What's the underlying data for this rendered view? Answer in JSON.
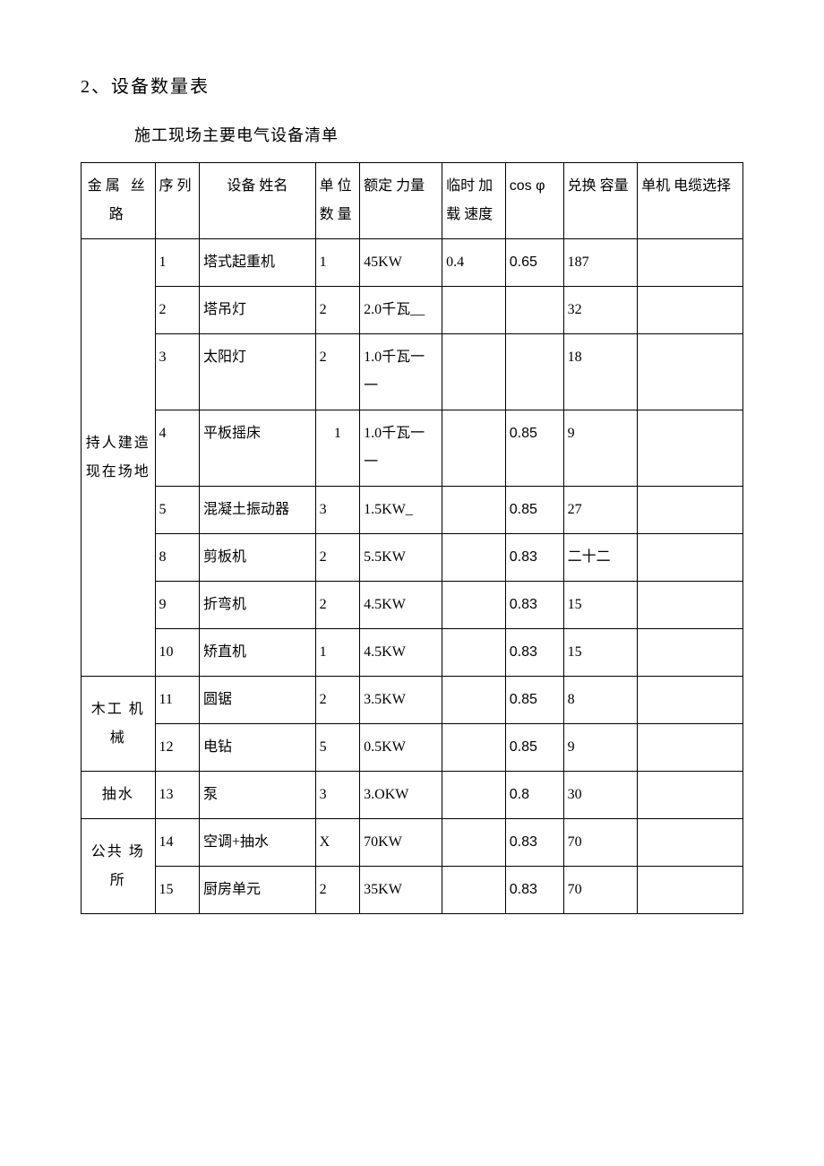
{
  "section_title": "2、设备数量表",
  "table_caption": "施工现场主要电气设备清单",
  "headers": {
    "group": "金属\n丝\n路",
    "seq": "序\n列",
    "name": "设备\n姓名",
    "qty": "单\n位\n数\n量",
    "rated": "额定\n力量",
    "temp": "临时\n加载\n速度",
    "cos": "cos\nφ",
    "cap": "兑换\n容量",
    "cable": "单机\n电缆选择"
  },
  "groups": [
    {
      "label": "持人建造现在场地",
      "rowspan": 8,
      "rows": [
        {
          "seq": "1",
          "name": "塔式起重机",
          "qty": "1",
          "rated": "45KW",
          "temp": "0.4",
          "cos": "0.65",
          "cap": "187",
          "cable": ""
        },
        {
          "seq": "2",
          "name": "塔吊灯",
          "qty": "2",
          "rated": "2.0千瓦__",
          "temp": "",
          "cos": "",
          "cap": "32",
          "cable": ""
        },
        {
          "seq": "3",
          "name": "太阳灯",
          "qty": "2",
          "rated": "1.0千瓦一一",
          "temp": "",
          "cos": "",
          "cap": "18",
          "cable": ""
        },
        {
          "seq": "4",
          "name": "平板摇床",
          "qty": "1",
          "qty_center": true,
          "rated": "1.0千瓦一一",
          "temp": "",
          "cos": "0.85",
          "cap": "9",
          "cable": ""
        },
        {
          "seq": "5",
          "name": "混凝土振动器",
          "qty": "3",
          "rated": "1.5KW_",
          "temp": "",
          "cos": "0.85",
          "cap": "27",
          "cable": ""
        },
        {
          "seq": "8",
          "name": "剪板机",
          "qty": "2",
          "rated": "5.5KW",
          "temp": "",
          "cos": "0.83",
          "cap": "二十二",
          "cable": ""
        },
        {
          "seq": "9",
          "name": "折弯机",
          "qty": "2",
          "rated": "4.5KW",
          "temp": "",
          "cos": "0.83",
          "cap": "15",
          "cable": ""
        },
        {
          "seq": "10",
          "name": "矫直机",
          "qty": "1",
          "rated": "4.5KW",
          "temp": "",
          "cos": "0.83",
          "cap": "15",
          "cable": ""
        }
      ]
    },
    {
      "label": "木工\n机械",
      "rowspan": 2,
      "rows": [
        {
          "seq": "11",
          "name": "圆锯",
          "qty": "2",
          "rated": "3.5KW",
          "temp": "",
          "cos": "0.85",
          "cap": "8",
          "cable": ""
        },
        {
          "seq": "12",
          "name": "电钻",
          "qty": "5",
          "rated": "0.5KW",
          "temp": "",
          "cos": "0.85",
          "cap": "9",
          "cable": ""
        }
      ]
    },
    {
      "label": "抽水",
      "rowspan": 1,
      "rows": [
        {
          "seq": "13",
          "name": "泵",
          "qty": "3",
          "rated": "3.OKW",
          "temp": "",
          "cos": "0.8",
          "cap": "30",
          "cable": ""
        }
      ]
    },
    {
      "label": "公共\n场所",
      "rowspan": 2,
      "rows": [
        {
          "seq": "14",
          "name": "空调+抽水",
          "qty": "X",
          "rated": "70KW",
          "temp": "",
          "cos": "0.83",
          "cap": "70",
          "cable": ""
        },
        {
          "seq": "15",
          "name": "厨房单元",
          "qty": "2",
          "rated": "35KW",
          "temp": "",
          "cos": "0.83",
          "cap": "70",
          "cable": ""
        }
      ]
    }
  ]
}
